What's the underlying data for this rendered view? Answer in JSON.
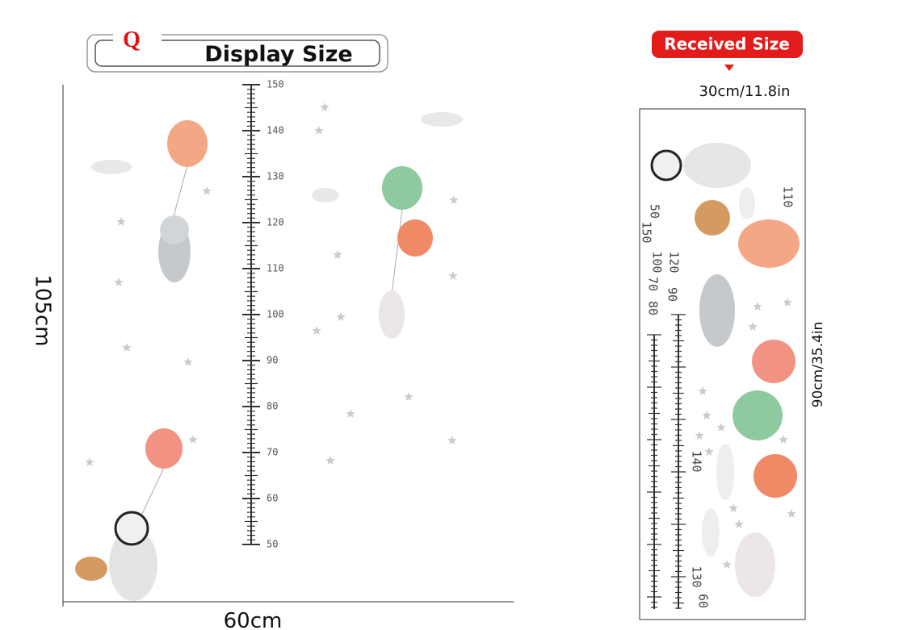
{
  "header": {
    "logo": "Q",
    "title": "Display Size"
  },
  "ruler": {
    "labels": [
      "150",
      "140",
      "130",
      "120",
      "110",
      "100",
      "90",
      "80",
      "70",
      "60",
      "50"
    ]
  },
  "dimensions": {
    "height": "105cm",
    "width": "60cm"
  },
  "received": {
    "badge": "Received Size",
    "width": "30cm/11.8in",
    "height": "90cm/35.4in"
  },
  "sheet": {
    "labels": [
      "50",
      "150",
      "70",
      "100",
      "80",
      "90",
      "120",
      "110",
      "140",
      "130",
      "60"
    ]
  }
}
